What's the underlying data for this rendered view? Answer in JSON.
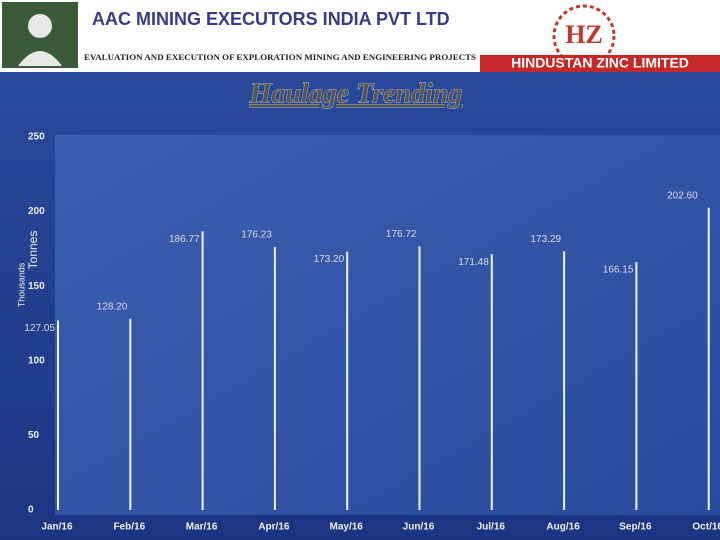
{
  "header": {
    "company": "AAC MINING EXECUTORS INDIA PVT LTD",
    "tagline": "EVALUATION AND EXECUTION OF EXPLORATION MINING AND ENGINEERING PROJECTS",
    "client": "HINDUSTAN ZINC LIMITED"
  },
  "chart_data": {
    "type": "bar",
    "title": "Haulage Trending",
    "y_label": "Tonnes",
    "y_unit": "Thousands",
    "categories": [
      "Jan/16",
      "Feb/16",
      "Mar/16",
      "Apr/16",
      "May/16",
      "Jun/16",
      "Jul/16",
      "Aug/16",
      "Sep/16",
      "Oct/16"
    ],
    "values": [
      127.05,
      128.2,
      186.77,
      176.23,
      173.2,
      176.72,
      171.48,
      173.29,
      166.15,
      202.6
    ],
    "value_labels": [
      "127.05",
      "128.20",
      "186.77",
      "176.23",
      "173.20",
      "176.72",
      "171.48",
      "173.29",
      "166.15",
      "202.60"
    ],
    "color": "#eef2fa",
    "ylim": [
      0,
      250
    ],
    "yticks": [
      0,
      50,
      100,
      150,
      200,
      250
    ]
  }
}
